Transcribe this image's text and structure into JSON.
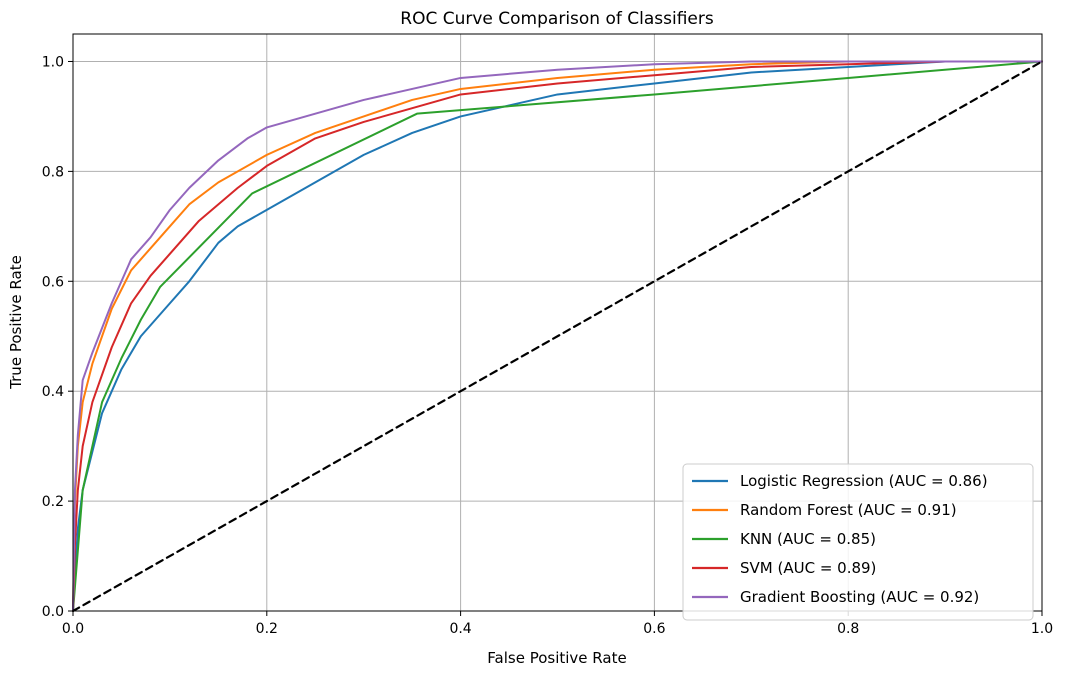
{
  "chart_data": {
    "type": "line",
    "title": "ROC Curve Comparison of Classifiers",
    "xlabel": "False Positive Rate",
    "ylabel": "True Positive Rate",
    "xlim": [
      0.0,
      1.0
    ],
    "ylim": [
      0.0,
      1.05
    ],
    "xticks": [
      "0.0",
      "0.2",
      "0.4",
      "0.6",
      "0.8",
      "1.0"
    ],
    "yticks": [
      "0.0",
      "0.2",
      "0.4",
      "0.6",
      "0.8",
      "1.0"
    ],
    "grid": true,
    "legend_position": "lower-right",
    "series": [
      {
        "name": "Logistic Regression (AUC = 0.86)",
        "color": "#1f77b4",
        "points": [
          [
            0,
            0
          ],
          [
            0.005,
            0.15
          ],
          [
            0.01,
            0.22
          ],
          [
            0.02,
            0.29
          ],
          [
            0.03,
            0.36
          ],
          [
            0.05,
            0.44
          ],
          [
            0.07,
            0.5
          ],
          [
            0.1,
            0.56
          ],
          [
            0.12,
            0.6
          ],
          [
            0.15,
            0.67
          ],
          [
            0.17,
            0.7
          ],
          [
            0.2,
            0.73
          ],
          [
            0.25,
            0.78
          ],
          [
            0.3,
            0.83
          ],
          [
            0.35,
            0.87
          ],
          [
            0.4,
            0.9
          ],
          [
            0.45,
            0.92
          ],
          [
            0.5,
            0.94
          ],
          [
            0.6,
            0.96
          ],
          [
            0.7,
            0.98
          ],
          [
            0.8,
            0.99
          ],
          [
            0.9,
            1.0
          ],
          [
            1.0,
            1.0
          ]
        ]
      },
      {
        "name": "Random Forest (AUC = 0.91)",
        "color": "#ff7f0e",
        "points": [
          [
            0,
            0
          ],
          [
            0.002,
            0.2
          ],
          [
            0.005,
            0.3
          ],
          [
            0.01,
            0.38
          ],
          [
            0.02,
            0.45
          ],
          [
            0.04,
            0.55
          ],
          [
            0.06,
            0.62
          ],
          [
            0.08,
            0.66
          ],
          [
            0.1,
            0.7
          ],
          [
            0.12,
            0.74
          ],
          [
            0.15,
            0.78
          ],
          [
            0.2,
            0.83
          ],
          [
            0.25,
            0.87
          ],
          [
            0.3,
            0.9
          ],
          [
            0.35,
            0.93
          ],
          [
            0.4,
            0.95
          ],
          [
            0.5,
            0.97
          ],
          [
            0.6,
            0.985
          ],
          [
            0.7,
            0.995
          ],
          [
            0.8,
            1.0
          ],
          [
            1.0,
            1.0
          ]
        ]
      },
      {
        "name": "KNN (AUC = 0.85)",
        "color": "#2ca02c",
        "points": [
          [
            0,
            0
          ],
          [
            0.01,
            0.22
          ],
          [
            0.03,
            0.38
          ],
          [
            0.05,
            0.46
          ],
          [
            0.07,
            0.53
          ],
          [
            0.09,
            0.59
          ],
          [
            0.185,
            0.76
          ],
          [
            0.355,
            0.905
          ],
          [
            0.6,
            0.94
          ],
          [
            0.8,
            0.97
          ],
          [
            1.0,
            1.0
          ]
        ]
      },
      {
        "name": "SVM (AUC = 0.89)",
        "color": "#d62728",
        "points": [
          [
            0,
            0
          ],
          [
            0.002,
            0.12
          ],
          [
            0.005,
            0.22
          ],
          [
            0.01,
            0.3
          ],
          [
            0.02,
            0.38
          ],
          [
            0.04,
            0.48
          ],
          [
            0.06,
            0.56
          ],
          [
            0.08,
            0.61
          ],
          [
            0.1,
            0.65
          ],
          [
            0.13,
            0.71
          ],
          [
            0.17,
            0.77
          ],
          [
            0.2,
            0.81
          ],
          [
            0.25,
            0.86
          ],
          [
            0.3,
            0.89
          ],
          [
            0.35,
            0.915
          ],
          [
            0.4,
            0.94
          ],
          [
            0.5,
            0.96
          ],
          [
            0.6,
            0.975
          ],
          [
            0.7,
            0.99
          ],
          [
            0.8,
            0.995
          ],
          [
            0.9,
            1.0
          ],
          [
            1.0,
            1.0
          ]
        ]
      },
      {
        "name": "Gradient Boosting (AUC = 0.92)",
        "color": "#9467bd",
        "points": [
          [
            0,
            0
          ],
          [
            0.002,
            0.22
          ],
          [
            0.005,
            0.32
          ],
          [
            0.01,
            0.42
          ],
          [
            0.02,
            0.47
          ],
          [
            0.04,
            0.56
          ],
          [
            0.06,
            0.64
          ],
          [
            0.08,
            0.68
          ],
          [
            0.1,
            0.73
          ],
          [
            0.12,
            0.77
          ],
          [
            0.15,
            0.82
          ],
          [
            0.18,
            0.86
          ],
          [
            0.2,
            0.88
          ],
          [
            0.25,
            0.905
          ],
          [
            0.3,
            0.93
          ],
          [
            0.35,
            0.95
          ],
          [
            0.4,
            0.97
          ],
          [
            0.5,
            0.985
          ],
          [
            0.6,
            0.995
          ],
          [
            0.7,
            1.0
          ],
          [
            1.0,
            1.0
          ]
        ]
      },
      {
        "name": "",
        "color": "#000000",
        "dashed": true,
        "points": [
          [
            0,
            0
          ],
          [
            1,
            1
          ]
        ]
      }
    ]
  }
}
